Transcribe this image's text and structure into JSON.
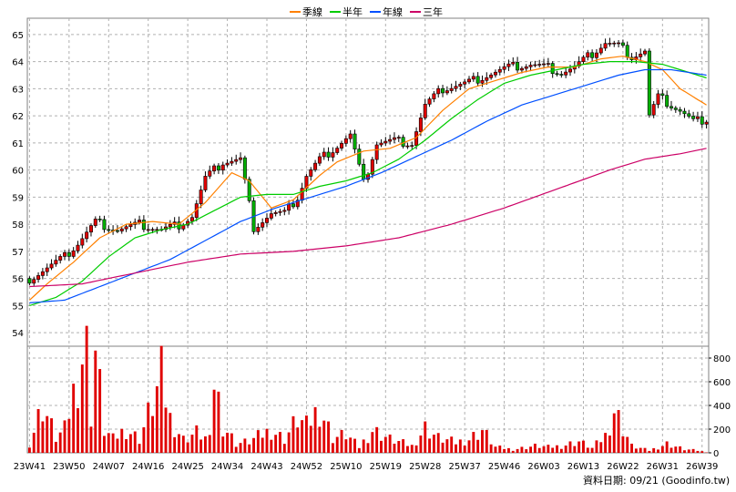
{
  "chart_data": {
    "type": "candlestick_with_volume",
    "legend": {
      "placement": "top-center",
      "entries": [
        {
          "label": "季線",
          "color": "#ff8000"
        },
        {
          "label": "半年",
          "color": "#00cc00"
        },
        {
          "label": "年線",
          "color": "#0050ff"
        },
        {
          "label": "三年",
          "color": "#cc0066"
        }
      ]
    },
    "price_axis": {
      "min": 53.5,
      "max": 65.6,
      "ticks": [
        54,
        55,
        56,
        57,
        58,
        59,
        60,
        61,
        62,
        63,
        64,
        65
      ]
    },
    "volume_axis": {
      "min": 0,
      "max": 900,
      "ticks": [
        0,
        200,
        400,
        600,
        800
      ]
    },
    "x_axis": {
      "weeks": 155,
      "tick_labels": [
        {
          "i": 0,
          "label": "23W41"
        },
        {
          "i": 9,
          "label": "23W50"
        },
        {
          "i": 18,
          "label": "24W07"
        },
        {
          "i": 27,
          "label": "24W16"
        },
        {
          "i": 36,
          "label": "24W25"
        },
        {
          "i": 45,
          "label": "24W34"
        },
        {
          "i": 54,
          "label": "24W43"
        },
        {
          "i": 63,
          "label": "24W52"
        },
        {
          "i": 72,
          "label": "25W10"
        },
        {
          "i": 81,
          "label": "25W19"
        },
        {
          "i": 90,
          "label": "25W28"
        },
        {
          "i": 99,
          "label": "25W37"
        },
        {
          "i": 108,
          "label": "25W46"
        },
        {
          "i": 117,
          "label": "26W03"
        },
        {
          "i": 126,
          "label": "26W13"
        },
        {
          "i": 135,
          "label": "26W22"
        },
        {
          "i": 144,
          "label": "26W31"
        },
        {
          "i": 153,
          "label": "26W39"
        }
      ]
    },
    "price_keypoints": [
      [
        0,
        56.0
      ],
      [
        4,
        56.4
      ],
      [
        8,
        56.8
      ],
      [
        11,
        57.3
      ],
      [
        15,
        58.1
      ],
      [
        20,
        57.8
      ],
      [
        25,
        58.0
      ],
      [
        30,
        57.8
      ],
      [
        34,
        58.0
      ],
      [
        37,
        58.3
      ],
      [
        40,
        59.7
      ],
      [
        44,
        60.3
      ],
      [
        48,
        60.4
      ],
      [
        51,
        57.9
      ],
      [
        55,
        58.4
      ],
      [
        58,
        58.4
      ],
      [
        61,
        59.0
      ],
      [
        63,
        59.8
      ],
      [
        66,
        60.4
      ],
      [
        70,
        60.9
      ],
      [
        73,
        61.3
      ],
      [
        76,
        59.5
      ],
      [
        79,
        61.0
      ],
      [
        83,
        61.1
      ],
      [
        87,
        61.0
      ],
      [
        90,
        62.4
      ],
      [
        94,
        63.0
      ],
      [
        99,
        63.2
      ],
      [
        104,
        63.5
      ],
      [
        109,
        63.8
      ],
      [
        114,
        63.9
      ],
      [
        118,
        63.8
      ],
      [
        121,
        63.6
      ],
      [
        124,
        63.8
      ],
      [
        128,
        64.3
      ],
      [
        131,
        64.7
      ],
      [
        134,
        64.6
      ],
      [
        137,
        64.2
      ],
      [
        140,
        64.4
      ],
      [
        141,
        62.0
      ],
      [
        143,
        62.7
      ],
      [
        145,
        62.5
      ],
      [
        148,
        62.2
      ],
      [
        151,
        61.8
      ],
      [
        154,
        61.9
      ]
    ],
    "volume_keypoints": [
      [
        0,
        80
      ],
      [
        3,
        420
      ],
      [
        6,
        130
      ],
      [
        8,
        200
      ],
      [
        10,
        520
      ],
      [
        12,
        850
      ],
      [
        13,
        890
      ],
      [
        14,
        350
      ],
      [
        15,
        900
      ],
      [
        17,
        200
      ],
      [
        19,
        120
      ],
      [
        22,
        210
      ],
      [
        25,
        120
      ],
      [
        29,
        540
      ],
      [
        30,
        660
      ],
      [
        32,
        300
      ],
      [
        35,
        120
      ],
      [
        38,
        180
      ],
      [
        41,
        110
      ],
      [
        42,
        670
      ],
      [
        44,
        250
      ],
      [
        47,
        80
      ],
      [
        50,
        100
      ],
      [
        55,
        200
      ],
      [
        58,
        120
      ],
      [
        61,
        300
      ],
      [
        63,
        230
      ],
      [
        66,
        400
      ],
      [
        69,
        130
      ],
      [
        72,
        160
      ],
      [
        75,
        50
      ],
      [
        78,
        200
      ],
      [
        82,
        120
      ],
      [
        87,
        60
      ],
      [
        90,
        220
      ],
      [
        93,
        130
      ],
      [
        97,
        90
      ],
      [
        100,
        120
      ],
      [
        103,
        200
      ],
      [
        106,
        50
      ],
      [
        110,
        30
      ],
      [
        115,
        60
      ],
      [
        118,
        50
      ],
      [
        121,
        60
      ],
      [
        125,
        100
      ],
      [
        128,
        40
      ],
      [
        131,
        150
      ],
      [
        133,
        380
      ],
      [
        135,
        220
      ],
      [
        137,
        60
      ],
      [
        141,
        20
      ],
      [
        145,
        80
      ],
      [
        149,
        30
      ],
      [
        152,
        20
      ],
      [
        154,
        5
      ]
    ],
    "moving_averages": [
      {
        "name": "季線",
        "color": "#ff8000",
        "points": [
          [
            0,
            55.2
          ],
          [
            4,
            55.8
          ],
          [
            10,
            56.6
          ],
          [
            16,
            57.5
          ],
          [
            22,
            58.0
          ],
          [
            28,
            58.1
          ],
          [
            34,
            58.0
          ],
          [
            40,
            58.8
          ],
          [
            46,
            59.9
          ],
          [
            50,
            59.6
          ],
          [
            55,
            58.6
          ],
          [
            60,
            58.9
          ],
          [
            66,
            59.8
          ],
          [
            70,
            60.3
          ],
          [
            76,
            60.7
          ],
          [
            82,
            60.8
          ],
          [
            88,
            61.2
          ],
          [
            94,
            62.2
          ],
          [
            100,
            63.0
          ],
          [
            106,
            63.3
          ],
          [
            112,
            63.6
          ],
          [
            118,
            63.8
          ],
          [
            124,
            63.8
          ],
          [
            130,
            64.1
          ],
          [
            135,
            64.2
          ],
          [
            140,
            64.0
          ],
          [
            144,
            63.7
          ],
          [
            148,
            63.0
          ],
          [
            152,
            62.6
          ],
          [
            154,
            62.4
          ]
        ]
      },
      {
        "name": "半年",
        "color": "#00cc00",
        "points": [
          [
            0,
            55.0
          ],
          [
            6,
            55.3
          ],
          [
            12,
            55.9
          ],
          [
            18,
            56.8
          ],
          [
            24,
            57.5
          ],
          [
            30,
            57.8
          ],
          [
            36,
            58.0
          ],
          [
            42,
            58.5
          ],
          [
            48,
            59.0
          ],
          [
            54,
            59.1
          ],
          [
            60,
            59.1
          ],
          [
            66,
            59.4
          ],
          [
            72,
            59.6
          ],
          [
            78,
            59.9
          ],
          [
            84,
            60.4
          ],
          [
            90,
            61.1
          ],
          [
            96,
            61.9
          ],
          [
            102,
            62.6
          ],
          [
            108,
            63.2
          ],
          [
            114,
            63.5
          ],
          [
            120,
            63.7
          ],
          [
            126,
            63.9
          ],
          [
            132,
            64.0
          ],
          [
            138,
            64.0
          ],
          [
            144,
            63.9
          ],
          [
            150,
            63.6
          ],
          [
            154,
            63.4
          ]
        ]
      },
      {
        "name": "年線",
        "color": "#0050ff",
        "points": [
          [
            0,
            55.1
          ],
          [
            8,
            55.2
          ],
          [
            16,
            55.7
          ],
          [
            24,
            56.2
          ],
          [
            32,
            56.7
          ],
          [
            40,
            57.4
          ],
          [
            48,
            58.1
          ],
          [
            56,
            58.6
          ],
          [
            64,
            59.0
          ],
          [
            72,
            59.4
          ],
          [
            80,
            59.9
          ],
          [
            88,
            60.5
          ],
          [
            96,
            61.1
          ],
          [
            104,
            61.8
          ],
          [
            112,
            62.4
          ],
          [
            120,
            62.8
          ],
          [
            128,
            63.2
          ],
          [
            134,
            63.5
          ],
          [
            140,
            63.7
          ],
          [
            146,
            63.7
          ],
          [
            154,
            63.5
          ]
        ]
      },
      {
        "name": "三年",
        "color": "#cc0066",
        "points": [
          [
            0,
            55.7
          ],
          [
            12,
            55.8
          ],
          [
            24,
            56.2
          ],
          [
            36,
            56.6
          ],
          [
            48,
            56.9
          ],
          [
            60,
            57.0
          ],
          [
            72,
            57.2
          ],
          [
            84,
            57.5
          ],
          [
            96,
            58.0
          ],
          [
            108,
            58.6
          ],
          [
            120,
            59.3
          ],
          [
            132,
            60.0
          ],
          [
            140,
            60.4
          ],
          [
            148,
            60.6
          ],
          [
            154,
            60.8
          ]
        ]
      }
    ],
    "footer_note": "資料日期: 09/21  (Goodinfo.tw)"
  }
}
